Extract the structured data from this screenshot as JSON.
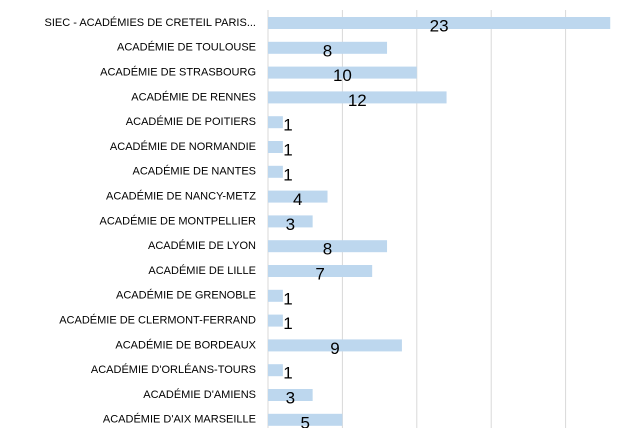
{
  "chart_data": {
    "type": "bar",
    "orientation": "horizontal",
    "categories": [
      "SIEC - ACADÉMIES DE CRETEIL PARIS...",
      "ACADÉMIE DE TOULOUSE",
      "ACADÉMIE DE STRASBOURG",
      "ACADÉMIE DE RENNES",
      "ACADÉMIE DE POITIERS",
      "ACADÉMIE DE NORMANDIE",
      "ACADÉMIE DE NANTES",
      "ACADÉMIE DE NANCY-METZ",
      "ACADÉMIE DE MONTPELLIER",
      "ACADÉMIE DE LYON",
      "ACADÉMIE DE LILLE",
      "ACADÉMIE DE GRENOBLE",
      "ACADÉMIE DE CLERMONT-FERRAND",
      "ACADÉMIE DE BORDEAUX",
      "ACADÉMIE D'ORLÉANS-TOURS",
      "ACADÉMIE D'AMIENS",
      "ACADÉMIE D'AIX MARSEILLE"
    ],
    "values": [
      23,
      8,
      10,
      12,
      1,
      1,
      1,
      4,
      3,
      8,
      7,
      1,
      1,
      9,
      1,
      3,
      5
    ],
    "color": "#bdd7ee",
    "xlim": [
      0,
      25
    ],
    "xticks": [
      0,
      5,
      10,
      15,
      20
    ],
    "grid": true
  }
}
